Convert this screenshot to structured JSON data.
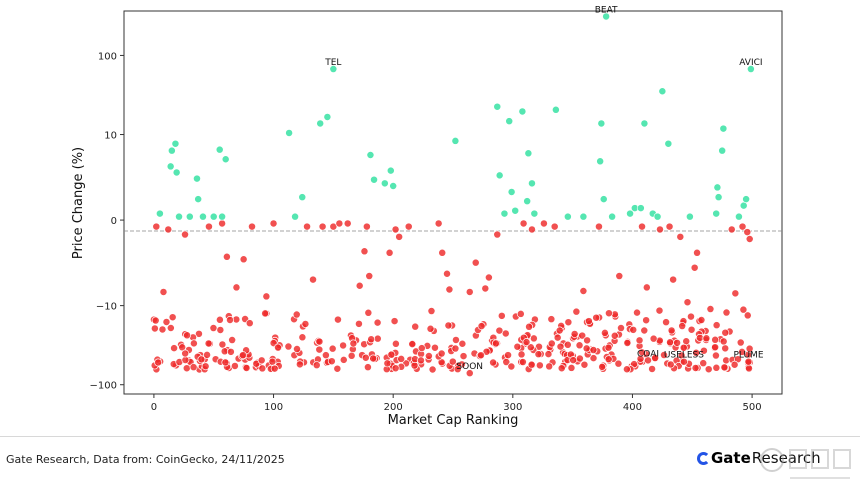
{
  "chart_data": {
    "type": "scatter",
    "title": "",
    "xlabel": "Market Cap Ranking",
    "ylabel": "Price Change (%)",
    "y_scale": "symlog",
    "xlim": [
      -25,
      525
    ],
    "ylim": [
      -130,
      350
    ],
    "x_ticks": [
      0,
      100,
      200,
      300,
      400,
      500
    ],
    "y_ticks": [
      -100,
      -10,
      0,
      10,
      100
    ],
    "y_tick_labels": [
      "−100",
      "−10",
      "0",
      "10",
      "100"
    ],
    "x_tick_labels": [
      "0",
      "100",
      "200",
      "300",
      "400",
      "500"
    ],
    "zero_line": "dashed",
    "grid": false,
    "positive_color": "#2fe0a0",
    "negative_color": "#ee2a2a",
    "labeled_points": [
      {
        "label": "BEAT",
        "x": 378,
        "y": 300
      },
      {
        "label": "TEL",
        "x": 150,
        "y": 68
      },
      {
        "label": "AVICI",
        "x": 499,
        "y": 68
      },
      {
        "label": "SOON",
        "x": 264,
        "y": -72
      },
      {
        "label": "COAI",
        "x": 413,
        "y": -50
      },
      {
        "label": "USELESS",
        "x": 443,
        "y": -52
      },
      {
        "label": "PLUME",
        "x": 497,
        "y": -52
      }
    ],
    "positive_points": [
      [
        5,
        0.2
      ],
      [
        14,
        3.5
      ],
      [
        15,
        6
      ],
      [
        18,
        7.5
      ],
      [
        19,
        2.8
      ],
      [
        21,
        0.1
      ],
      [
        30,
        0.1
      ],
      [
        36,
        2.2
      ],
      [
        37,
        0.8
      ],
      [
        41,
        0.1
      ],
      [
        50,
        0.1
      ],
      [
        55,
        6.2
      ],
      [
        57,
        0.1
      ],
      [
        60,
        4.5
      ],
      [
        113,
        10.5
      ],
      [
        118,
        0.1
      ],
      [
        124,
        0.9
      ],
      [
        139,
        14
      ],
      [
        145,
        17
      ],
      [
        181,
        5.2
      ],
      [
        184,
        2.1
      ],
      [
        193,
        1.8
      ],
      [
        198,
        3
      ],
      [
        200,
        1.6
      ],
      [
        252,
        8.2
      ],
      [
        287,
        23
      ],
      [
        289,
        2.5
      ],
      [
        293,
        0.2
      ],
      [
        297,
        15
      ],
      [
        299,
        1.2
      ],
      [
        302,
        0.3
      ],
      [
        308,
        20
      ],
      [
        312,
        0.7
      ],
      [
        313,
        5.5
      ],
      [
        316,
        1.8
      ],
      [
        318,
        0.2
      ],
      [
        336,
        21
      ],
      [
        346,
        0.1
      ],
      [
        359,
        0.1
      ],
      [
        373,
        4.2
      ],
      [
        374,
        14
      ],
      [
        376,
        0.8
      ],
      [
        383,
        0.1
      ],
      [
        398,
        0.2
      ],
      [
        402,
        0.4
      ],
      [
        407,
        0.4
      ],
      [
        410,
        14
      ],
      [
        417,
        0.2
      ],
      [
        421,
        0.1
      ],
      [
        425,
        36
      ],
      [
        430,
        7.5
      ],
      [
        448,
        0.1
      ],
      [
        470,
        0.2
      ],
      [
        471,
        1.5
      ],
      [
        472,
        0.9
      ],
      [
        475,
        6
      ],
      [
        476,
        12
      ],
      [
        489,
        0.1
      ],
      [
        493,
        0.5
      ],
      [
        495,
        0.8
      ]
    ],
    "negative_points": [
      [
        2,
        -0.2
      ],
      [
        8,
        -6.5
      ],
      [
        12,
        -0.3
      ],
      [
        26,
        -0.5
      ],
      [
        46,
        -0.2
      ],
      [
        57,
        -0.1
      ],
      [
        61,
        -1.8
      ],
      [
        69,
        -5.6
      ],
      [
        75,
        -2
      ],
      [
        82,
        -0.2
      ],
      [
        94,
        -7.5
      ],
      [
        100,
        -0.1
      ],
      [
        128,
        -0.2
      ],
      [
        133,
        -4.3
      ],
      [
        141,
        -0.2
      ],
      [
        150,
        -0.2
      ],
      [
        155,
        -0.1
      ],
      [
        162,
        -0.1
      ],
      [
        172,
        -5.3
      ],
      [
        176,
        -1.4
      ],
      [
        178,
        -0.2
      ],
      [
        180,
        -3.8
      ],
      [
        197,
        -1.5
      ],
      [
        202,
        -0.3
      ],
      [
        205,
        -0.6
      ],
      [
        213,
        -0.2
      ],
      [
        238,
        -0.1
      ],
      [
        241,
        -1.5
      ],
      [
        245,
        -3.5
      ],
      [
        247,
        -6
      ],
      [
        264,
        -6.5
      ],
      [
        269,
        -2.3
      ],
      [
        277,
        -5.8
      ],
      [
        280,
        -4
      ],
      [
        287,
        -0.5
      ],
      [
        309,
        -0.1
      ],
      [
        316,
        -0.3
      ],
      [
        326,
        -0.1
      ],
      [
        335,
        -0.2
      ],
      [
        359,
        -6.3
      ],
      [
        372,
        -0.2
      ],
      [
        389,
        -3.8
      ],
      [
        408,
        -0.2
      ],
      [
        412,
        -5.6
      ],
      [
        423,
        -0.3
      ],
      [
        431,
        -0.2
      ],
      [
        434,
        -4.3
      ],
      [
        440,
        -0.6
      ],
      [
        446,
        -9
      ],
      [
        452,
        -2.8
      ],
      [
        454,
        -1.5
      ],
      [
        483,
        -0.3
      ],
      [
        486,
        -6.8
      ],
      [
        492,
        -0.2
      ],
      [
        496,
        -0.4
      ],
      [
        498,
        -0.7
      ]
    ],
    "lower_cluster_range": {
      "x": [
        0,
        500
      ],
      "y": [
        -65,
        -11
      ],
      "count": 420
    }
  },
  "footer": {
    "source": "Gate Research, Data from: CoinGecko, 24/11/2025",
    "brand": "Gate",
    "brand_suffix": "Research"
  }
}
